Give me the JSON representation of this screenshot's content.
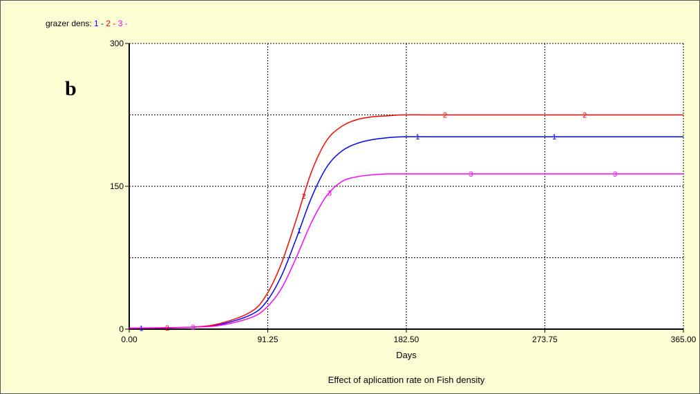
{
  "chart_data": {
    "type": "line",
    "legend_label": "grazer dens:",
    "panel_label": "b",
    "xlabel": "Days",
    "title": "Effect of aplicattion rate on Fish density",
    "xlim": [
      0,
      365
    ],
    "ylim": [
      0,
      300
    ],
    "x_ticks": [
      "0.00",
      "91.25",
      "182.50",
      "273.75",
      "365.00"
    ],
    "y_ticks": [
      "0",
      "150",
      "300"
    ],
    "grid": true,
    "legend_position": "top-left",
    "series": [
      {
        "name": "1",
        "color": "#0000ff",
        "x": [
          0,
          40,
          60,
          80,
          90,
          100,
          110,
          120,
          130,
          140,
          150,
          160,
          170,
          180,
          200,
          250,
          300,
          365
        ],
        "y": [
          1,
          2,
          5,
          15,
          28,
          55,
          95,
          138,
          170,
          187,
          195,
          199,
          201,
          202,
          202,
          202,
          202,
          202
        ]
      },
      {
        "name": "2",
        "color": "#ff0000",
        "x": [
          0,
          40,
          60,
          80,
          90,
          100,
          110,
          120,
          130,
          140,
          150,
          160,
          170,
          180,
          200,
          250,
          300,
          365
        ],
        "y": [
          1,
          2,
          6,
          18,
          35,
          68,
          115,
          165,
          198,
          213,
          220,
          223,
          224,
          225,
          225,
          225,
          225,
          225
        ]
      },
      {
        "name": "3",
        "color": "#ff00ff",
        "x": [
          0,
          40,
          60,
          80,
          90,
          100,
          110,
          120,
          130,
          140,
          150,
          160,
          170,
          180,
          200,
          250,
          300,
          365
        ],
        "y": [
          1,
          2,
          4,
          12,
          22,
          42,
          75,
          112,
          140,
          155,
          160,
          162,
          163,
          163,
          163,
          163,
          163,
          163
        ]
      }
    ]
  }
}
